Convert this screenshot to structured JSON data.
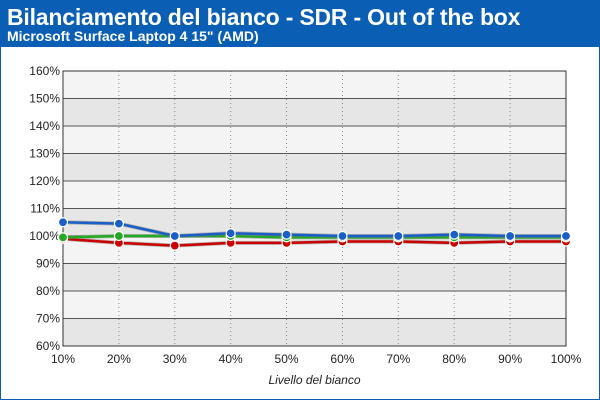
{
  "header": {
    "title": "Bilanciamento del bianco - SDR - Out of the box",
    "subtitle": "Microsoft Surface Laptop 4 15\" (AMD)"
  },
  "chart_data": {
    "type": "line",
    "title": "Bilanciamento del bianco - SDR - Out of the box",
    "subtitle": "Microsoft Surface Laptop 4 15\" (AMD)",
    "xlabel": "Livello del bianco",
    "ylabel": "",
    "categories": [
      "10%",
      "20%",
      "30%",
      "40%",
      "50%",
      "60%",
      "70%",
      "80%",
      "90%",
      "100%"
    ],
    "y_ticks": [
      "60%",
      "70%",
      "80%",
      "90%",
      "100%",
      "110%",
      "120%",
      "130%",
      "140%",
      "150%",
      "160%"
    ],
    "ylim": [
      60,
      160
    ],
    "grid": true,
    "series": [
      {
        "color": "#cc0000",
        "values": [
          99,
          97.5,
          96.5,
          97.5,
          97.5,
          98,
          98,
          97.5,
          98,
          98
        ]
      },
      {
        "color": "#22aa22",
        "values": [
          99.5,
          100,
          100,
          100,
          99.5,
          99.5,
          99.5,
          99.5,
          99.5,
          99.5
        ]
      },
      {
        "color": "#1a5fc8",
        "values": [
          105,
          104.5,
          100,
          101,
          100.5,
          100,
          100,
          100.5,
          100,
          100
        ]
      }
    ],
    "colors": {
      "header_bg": "#0a5fb4",
      "plot_band": "#e6e6e6",
      "plot_bg": "#f4f4f4"
    }
  }
}
